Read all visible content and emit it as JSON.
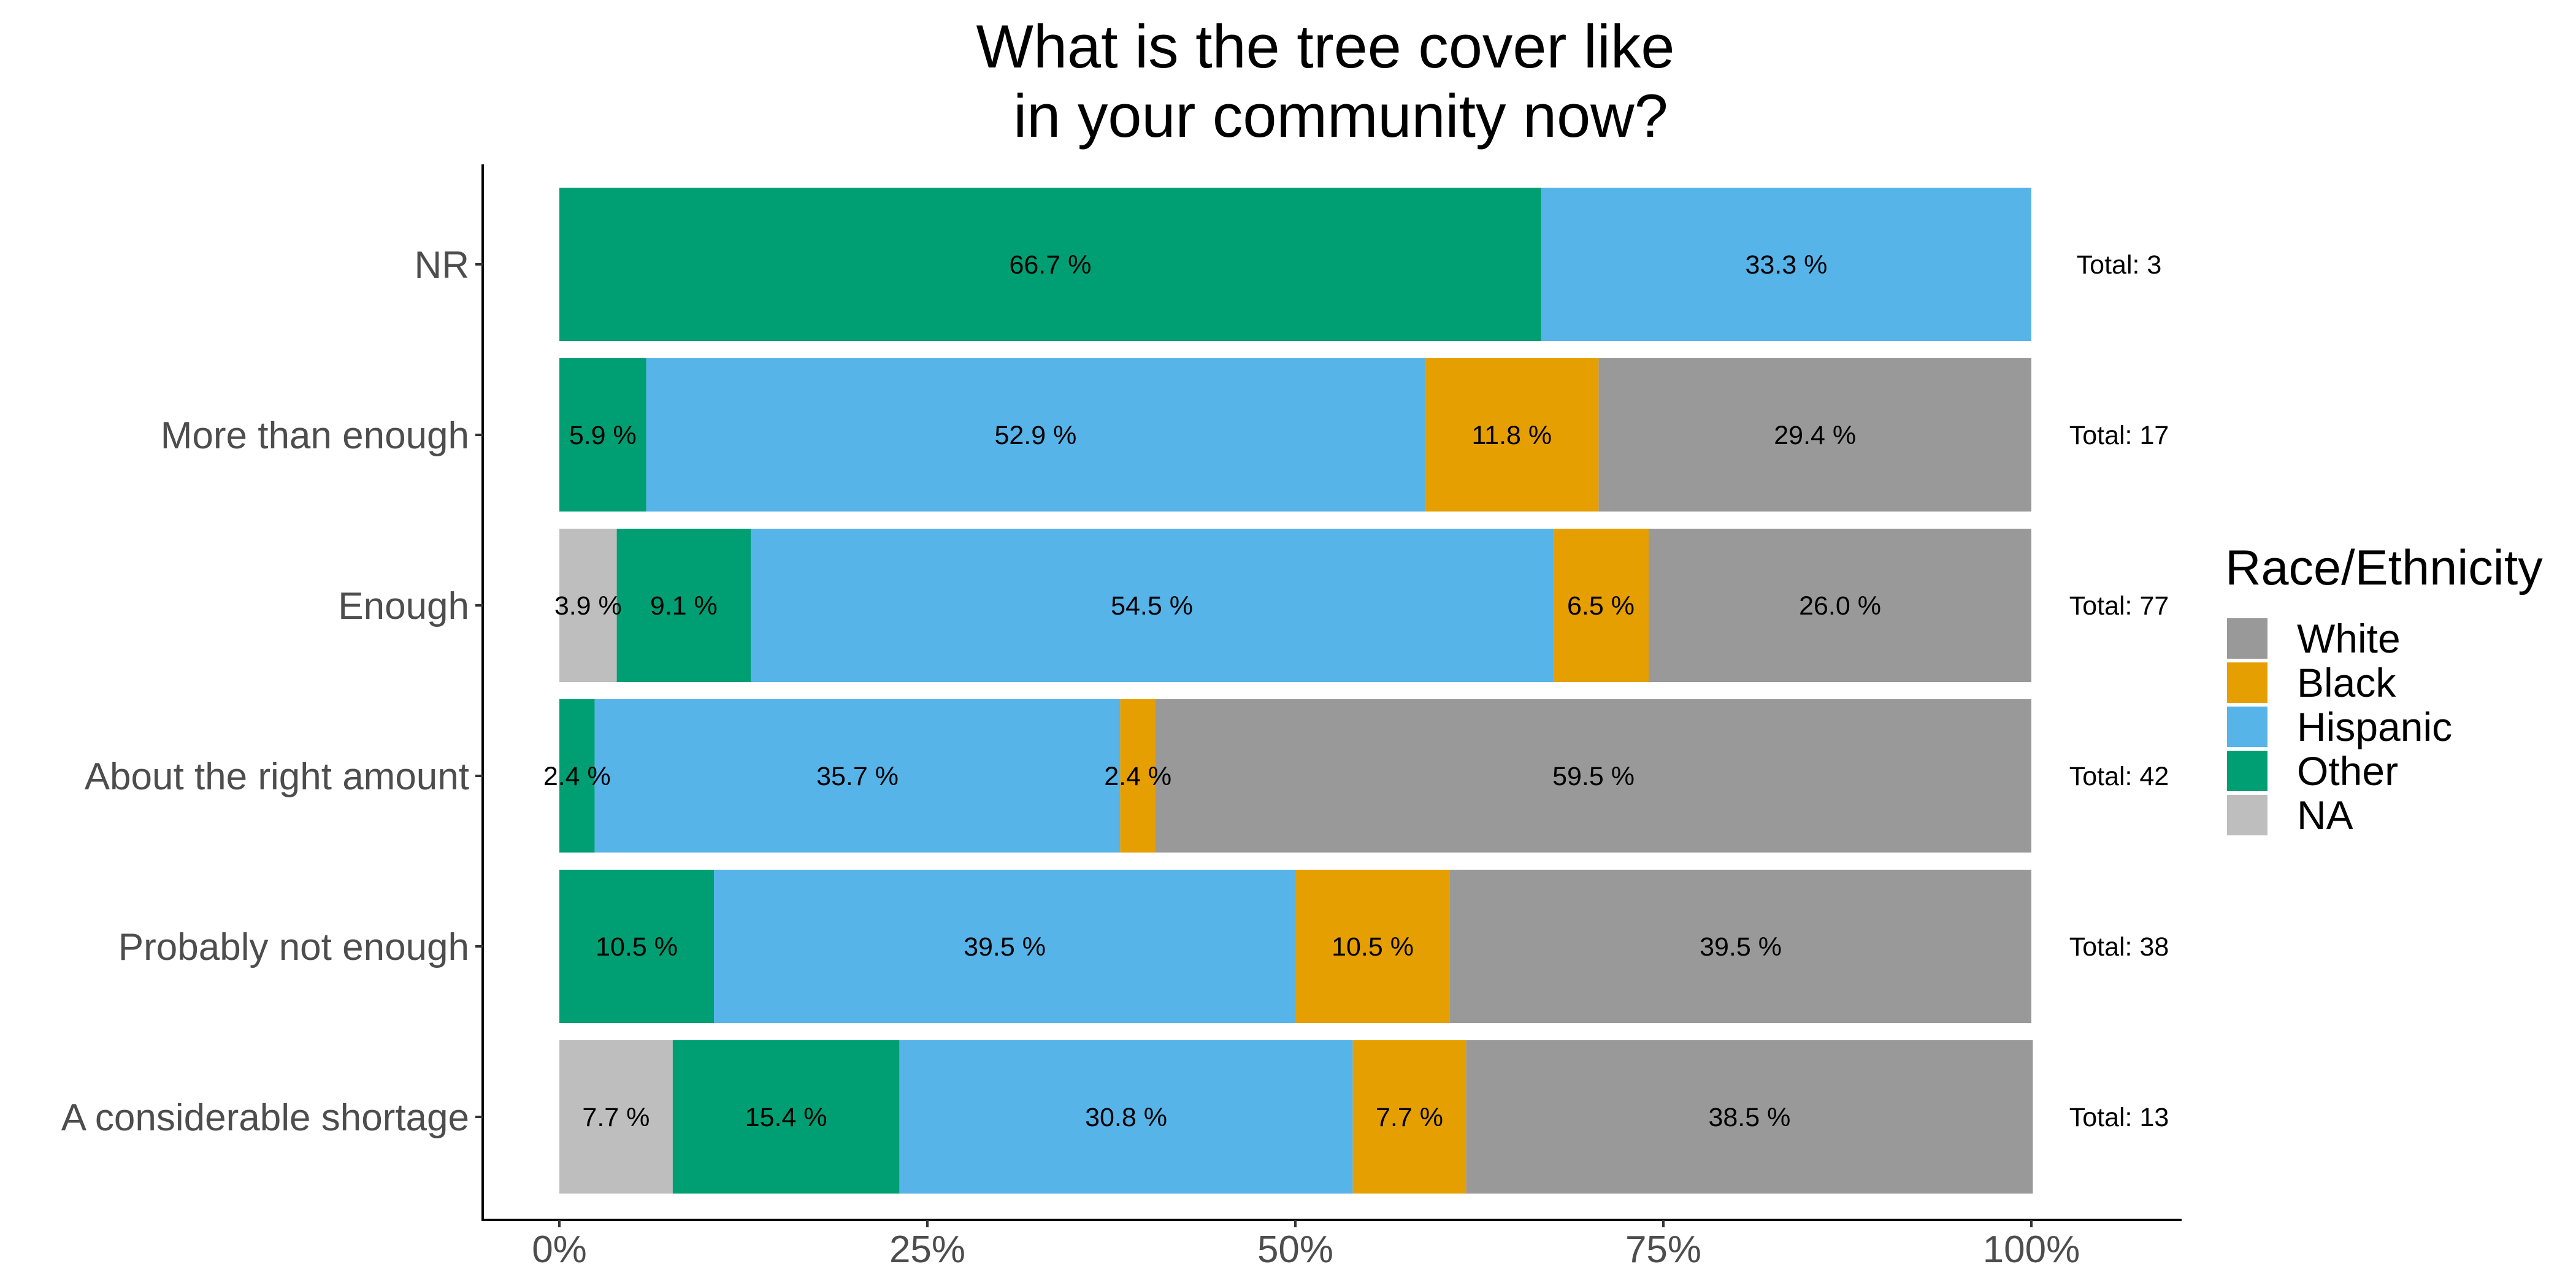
{
  "chart_data": {
    "type": "bar",
    "orientation": "horizontal",
    "stacked": "percent",
    "title_lines": [
      "What is the tree cover like",
      "in your community now?"
    ],
    "categories": [
      "NR",
      "More than enough",
      "Enough",
      "About the right amount",
      "Probably not enough",
      "A considerable shortage"
    ],
    "series": [
      {
        "name": "NA",
        "color": "#bebebe",
        "values": [
          0,
          0,
          3.9,
          0,
          0,
          7.7
        ]
      },
      {
        "name": "Other",
        "color": "#009e73",
        "values": [
          66.7,
          5.9,
          9.1,
          2.4,
          10.5,
          15.4
        ]
      },
      {
        "name": "Hispanic",
        "color": "#56b4e9",
        "values": [
          33.3,
          52.9,
          54.5,
          35.7,
          39.5,
          30.8
        ]
      },
      {
        "name": "Black",
        "color": "#e69f00",
        "values": [
          0,
          11.8,
          6.5,
          2.4,
          10.5,
          7.7
        ]
      },
      {
        "name": "White",
        "color": "#999999",
        "values": [
          0,
          29.4,
          26.0,
          59.5,
          39.5,
          38.5
        ]
      }
    ],
    "totals": [
      "Total:  3",
      "Total:  17",
      "Total:  77",
      "Total:  42",
      "Total:  38",
      "Total:  13"
    ],
    "xticks": [
      "0%",
      "25%",
      "50%",
      "75%",
      "100%"
    ],
    "xlim": [
      0,
      100
    ],
    "legend": {
      "title": "Race/Ethnicity",
      "position": "right",
      "items": [
        {
          "label": "White",
          "color": "#999999"
        },
        {
          "label": "Black",
          "color": "#e69f00"
        },
        {
          "label": "Hispanic",
          "color": "#56b4e9"
        },
        {
          "label": "Other",
          "color": "#009e73"
        },
        {
          "label": "NA",
          "color": "#bebebe"
        }
      ]
    },
    "grid": false
  }
}
